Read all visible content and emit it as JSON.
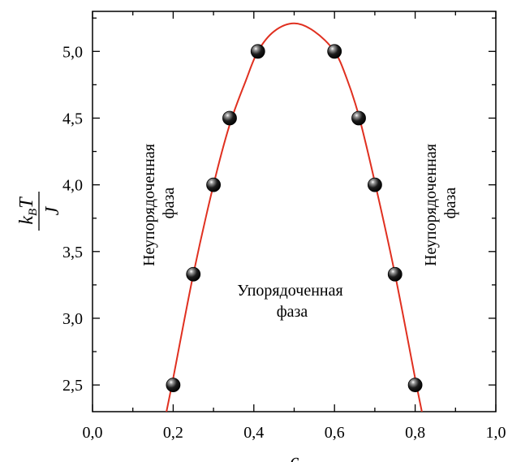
{
  "chart_data": {
    "type": "scatter",
    "title": "",
    "xlabel": "c",
    "ylabel": {
      "numerator": "k",
      "subscript": "B",
      "numerator_var": "T",
      "denominator": "J"
    },
    "xlim": [
      0.0,
      1.0
    ],
    "ylim": [
      2.3,
      5.3
    ],
    "grid": false,
    "x_ticks": [
      0.0,
      0.2,
      0.4,
      0.6,
      0.8,
      1.0
    ],
    "x_tick_labels": [
      "0,0",
      "0,2",
      "0,4",
      "0,6",
      "0,8",
      "1,0"
    ],
    "y_ticks": [
      2.5,
      3.0,
      3.5,
      4.0,
      4.5,
      5.0
    ],
    "y_tick_labels": [
      "2,5",
      "3,0",
      "3,5",
      "4,0",
      "4,5",
      "5,0"
    ],
    "series": [
      {
        "kind": "points",
        "color": "#1a1a1a",
        "points": [
          {
            "x": 0.2,
            "y": 2.5
          },
          {
            "x": 0.25,
            "y": 3.33
          },
          {
            "x": 0.3,
            "y": 4.0
          },
          {
            "x": 0.34,
            "y": 4.5
          },
          {
            "x": 0.41,
            "y": 5.0
          },
          {
            "x": 0.6,
            "y": 5.0
          },
          {
            "x": 0.66,
            "y": 4.5
          },
          {
            "x": 0.7,
            "y": 4.0
          },
          {
            "x": 0.75,
            "y": 3.33
          },
          {
            "x": 0.8,
            "y": 2.5
          }
        ]
      },
      {
        "kind": "fit-curve",
        "color": "#e03020",
        "description": "parabolic fit through points, peak near c=0.5, kT/J≈5.21",
        "curve": [
          {
            "x": 0.18,
            "y": 2.25
          },
          {
            "x": 0.2,
            "y": 2.55
          },
          {
            "x": 0.25,
            "y": 3.33
          },
          {
            "x": 0.3,
            "y": 4.0
          },
          {
            "x": 0.34,
            "y": 4.45
          },
          {
            "x": 0.38,
            "y": 4.78
          },
          {
            "x": 0.41,
            "y": 5.0
          },
          {
            "x": 0.45,
            "y": 5.15
          },
          {
            "x": 0.5,
            "y": 5.21
          },
          {
            "x": 0.55,
            "y": 5.15
          },
          {
            "x": 0.6,
            "y": 5.0
          },
          {
            "x": 0.63,
            "y": 4.8
          },
          {
            "x": 0.66,
            "y": 4.52
          },
          {
            "x": 0.7,
            "y": 4.02
          },
          {
            "x": 0.75,
            "y": 3.33
          },
          {
            "x": 0.8,
            "y": 2.55
          },
          {
            "x": 0.82,
            "y": 2.25
          }
        ]
      }
    ],
    "annotations": {
      "left_region": [
        "Неупорядоченная",
        "фаза"
      ],
      "right_region": [
        "Неупорядоченная",
        "фаза"
      ],
      "center_region": [
        "Упорядоченная",
        "фаза"
      ]
    }
  }
}
